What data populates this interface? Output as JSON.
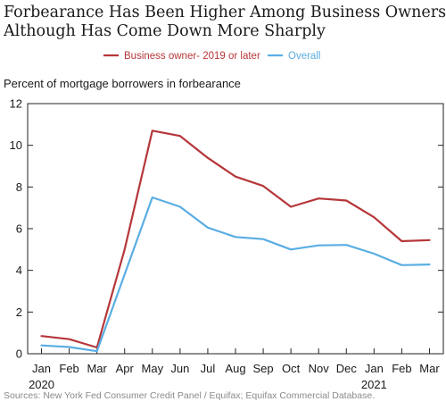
{
  "chart_data": {
    "type": "line",
    "title": "Forbearance Has Been Higher Among Business Owners, Although Has Come Down More Sharply",
    "title_lines": [
      "Forbearance Has Been Higher Among Business Owners,",
      "Although Has Come Down More Sharply"
    ],
    "ylabel": "Percent of mortgage borrowers in forbearance",
    "xlabel": "",
    "categories": [
      "Jan 2020",
      "Feb",
      "Mar",
      "Apr",
      "May",
      "Jun",
      "Jul",
      "Aug",
      "Sep",
      "Oct",
      "Nov",
      "Dec",
      "Jan 2021",
      "Feb",
      "Mar"
    ],
    "x_tick_labels": [
      "Jan",
      "Feb",
      "Mar",
      "Apr",
      "May",
      "Jun",
      "Jul",
      "Aug",
      "Sep",
      "Oct",
      "Nov",
      "Dec",
      "Jan",
      "Feb",
      "Mar"
    ],
    "year_labels": [
      {
        "index": 0,
        "label": "2020"
      },
      {
        "index": 12,
        "label": "2021"
      }
    ],
    "ylim": [
      0,
      12
    ],
    "y_ticks": [
      0,
      2,
      4,
      6,
      8,
      10,
      12
    ],
    "grid": false,
    "legend_position": "top-center",
    "series": [
      {
        "name": "Business owner- 2019 or later",
        "color": "#b5373a",
        "values": [
          0.85,
          0.7,
          0.3,
          5.0,
          10.7,
          10.45,
          9.4,
          8.5,
          8.05,
          7.05,
          7.45,
          7.35,
          6.55,
          5.4,
          5.45
        ]
      },
      {
        "name": "Overall",
        "color": "#5aaee3",
        "values": [
          0.4,
          0.32,
          0.12,
          3.8,
          7.5,
          7.05,
          6.05,
          5.6,
          5.5,
          5.0,
          5.2,
          5.22,
          4.8,
          4.25,
          4.28
        ]
      }
    ],
    "source": "Sources: New York Fed Consumer Credit Panel / Equifax; Equifax Commercial Database."
  },
  "colors": {
    "axis": "#222222",
    "text": "#1a1a1a",
    "source_text": "#8a8a8a"
  }
}
